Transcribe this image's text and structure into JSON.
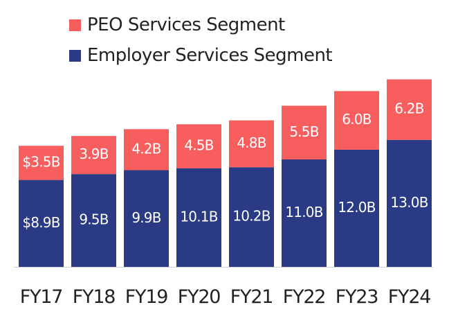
{
  "chart_data": {
    "type": "bar",
    "stacked": true,
    "categories": [
      "FY17",
      "FY18",
      "FY19",
      "FY20",
      "FY21",
      "FY22",
      "FY23",
      "FY24"
    ],
    "series": [
      {
        "name": "Employer Services Segment",
        "color": "#2a3a85",
        "values": [
          8.9,
          9.5,
          9.9,
          10.1,
          10.2,
          11.0,
          12.0,
          13.0
        ],
        "labels": [
          "$8.9B",
          "9.5B",
          "9.9B",
          "10.1B",
          "10.2B",
          "11.0B",
          "12.0B",
          "13.0B"
        ]
      },
      {
        "name": "PEO Services Segment",
        "color": "#f85e5e",
        "values": [
          3.5,
          3.9,
          4.2,
          4.5,
          4.8,
          5.5,
          6.0,
          6.2
        ],
        "labels": [
          "$3.5B",
          "3.9B",
          "4.2B",
          "4.5B",
          "4.8B",
          "5.5B",
          "6.0B",
          "6.2B"
        ]
      }
    ],
    "legend_position": "top-left",
    "grid": false
  },
  "legend": {
    "items": [
      {
        "label": "PEO Services Segment",
        "color": "#f85e5e"
      },
      {
        "label": "Employer Services Segment",
        "color": "#2a3a85"
      }
    ]
  }
}
